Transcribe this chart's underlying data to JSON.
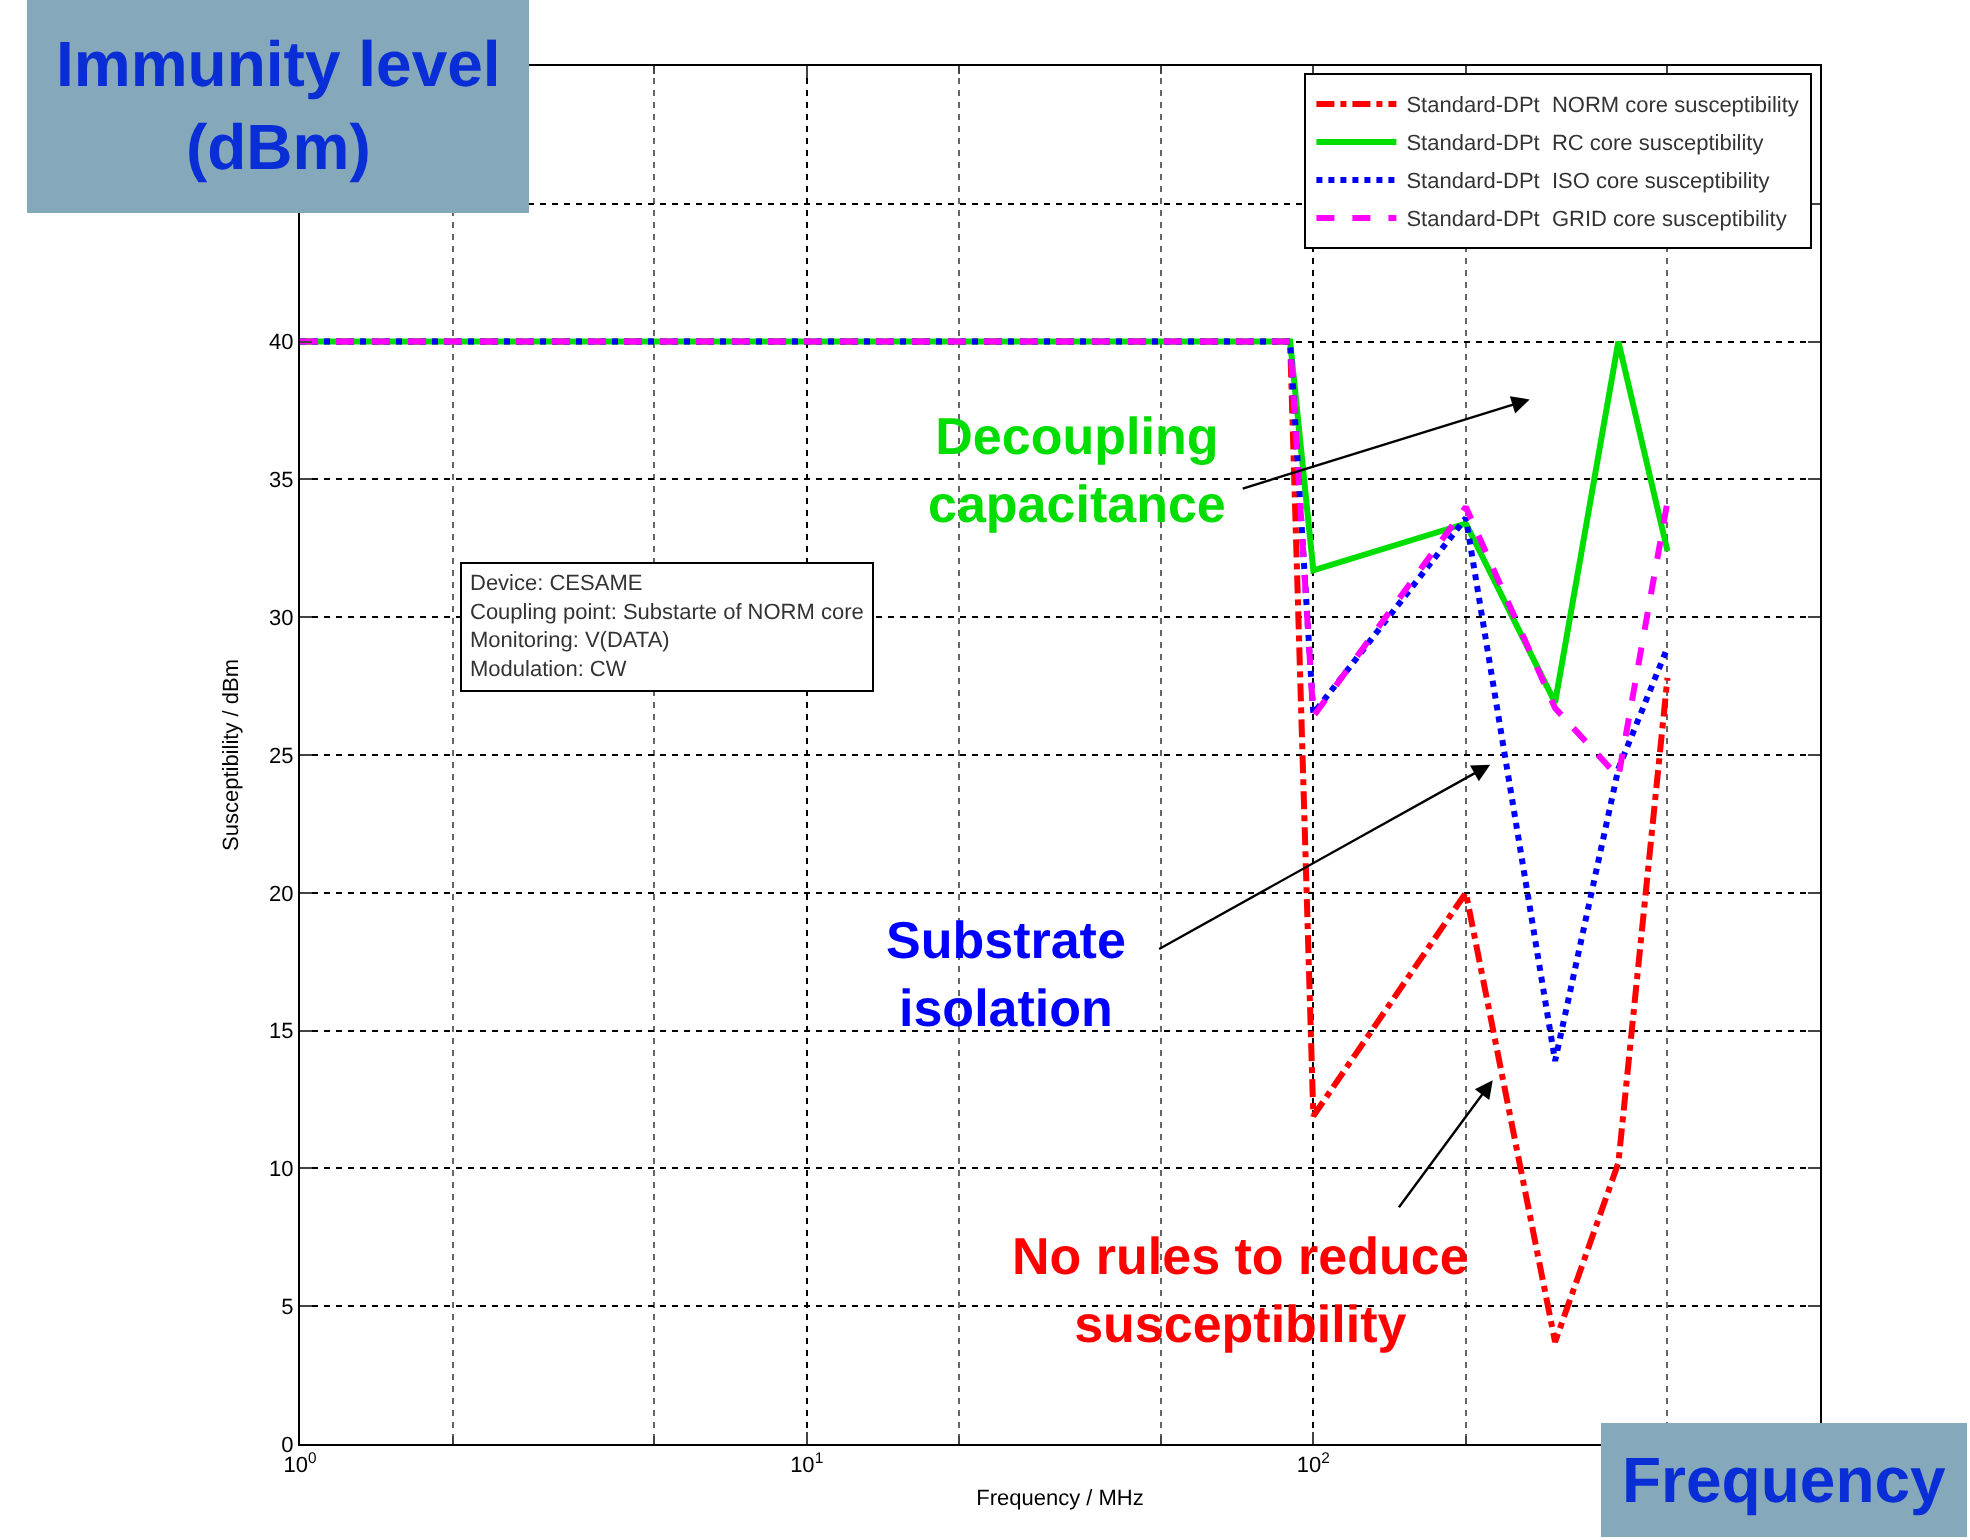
{
  "chart_data": {
    "type": "line",
    "xlabel": "Frequency / MHz",
    "ylabel": "Susceptibility / dBm",
    "x": [
      1,
      90,
      100,
      200,
      300,
      400,
      500
    ],
    "series": [
      {
        "name": "Standard-DPt  NORM core susceptibility",
        "color": "#ff0000",
        "line_style": "dashdot",
        "values": [
          40,
          40,
          11.9,
          20,
          3.7,
          10.2,
          27.8
        ]
      },
      {
        "name": "Standard-DPt  RC core susceptibility",
        "color": "#00dd00",
        "line_style": "solid",
        "values": [
          40,
          40,
          31.7,
          33.4,
          26.9,
          40,
          32.4
        ]
      },
      {
        "name": "Standard-DPt  ISO core susceptibility",
        "color": "#0000ff",
        "line_style": "dotted",
        "values": [
          40,
          40,
          26.5,
          33.6,
          13.9,
          24.5,
          28.9
        ]
      },
      {
        "name": "Standard-DPt  GRID core susceptibility",
        "color": "#ff00ff",
        "line_style": "dashed",
        "values": [
          40,
          40,
          26.4,
          34,
          26.7,
          24.2,
          34.2
        ]
      }
    ],
    "log": "x",
    "xlim": [
      1,
      1000
    ],
    "xticks": [
      {
        "value": 1,
        "label": "10$^{0}$"
      },
      {
        "value": 10,
        "label": "10$^{1}$"
      },
      {
        "value": 100,
        "label": "10$^{2}$"
      },
      {
        "value": 1000,
        "label": null
      }
    ],
    "ylim": [
      0,
      50
    ],
    "yticks": [
      0,
      5,
      10,
      15,
      20,
      25,
      30,
      35,
      40,
      {
        "value": 45,
        "label": null
      },
      {
        "value": 50,
        "label": null
      }
    ],
    "grid": true,
    "legend": "top right",
    "marker": "none",
    "annotations": [
      "Immunity level\n(dBm)",
      "Frequency",
      "Device: CESAME\nCoupling point: Substarte of NORM core\nMonitoring: V(DATA)\nModulation: CW",
      "Decoupling\ncapacitance",
      "Substrate\nisolation",
      {
        "text": "No rules to reduce\nsusceptibility",
        "x": 226,
        "y": 13.2
      }
    ]
  }
}
